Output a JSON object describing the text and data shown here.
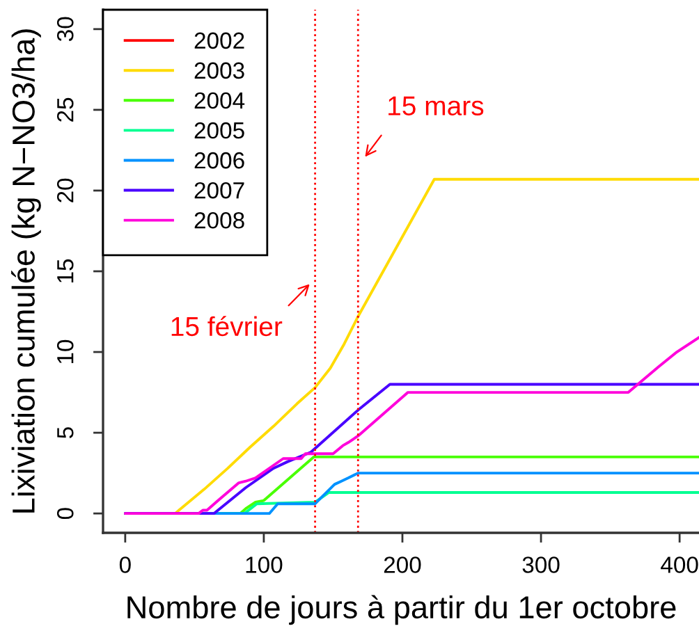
{
  "chart_data": {
    "type": "line",
    "xlabel": "Nombre de jours à partir du 1er octobre",
    "ylabel": "Lixiviation cumulée (kg N−NO3/ha)",
    "xlim": [
      -16,
      414
    ],
    "ylim": [
      -1.2,
      31.2
    ],
    "xticks": [
      0,
      100,
      200,
      300,
      400
    ],
    "yticks": [
      0,
      5,
      10,
      15,
      20,
      25,
      30
    ],
    "legend": "top left",
    "line_style": "solid",
    "marker": "none",
    "series": [
      {
        "name": "2002",
        "color": "#ff0000"
      },
      {
        "name": "2003",
        "color": "#ffdb00",
        "x": [
          0,
          36,
          57,
          74,
          90,
          107,
          124,
          137,
          148,
          158,
          168,
          223,
          414
        ],
        "values": [
          0,
          0,
          1.5,
          2.8,
          4.1,
          5.4,
          6.8,
          7.8,
          9.0,
          10.5,
          12.2,
          20.7,
          20.7
        ]
      },
      {
        "name": "2004",
        "color": "#49ff00",
        "x": [
          0,
          83,
          87,
          94,
          100,
          136,
          414
        ],
        "values": [
          0,
          0,
          0.3,
          0.7,
          0.8,
          3.5,
          3.5
        ]
      },
      {
        "name": "2005",
        "color": "#00ff92",
        "x": [
          0,
          86,
          95,
          137,
          147,
          414
        ],
        "values": [
          0,
          0,
          0.6,
          0.7,
          1.3,
          1.3
        ]
      },
      {
        "name": "2006",
        "color": "#0092ff",
        "x": [
          0,
          104,
          110,
          137,
          151,
          156,
          161,
          168,
          414
        ],
        "values": [
          0,
          0,
          0.6,
          0.6,
          1.8,
          2.0,
          2.2,
          2.5,
          2.5
        ]
      },
      {
        "name": "2007",
        "color": "#4900ff",
        "x": [
          0,
          64,
          87,
          107,
          117,
          134,
          168,
          191,
          414
        ],
        "values": [
          0,
          0,
          1.6,
          2.8,
          3.2,
          3.8,
          6.4,
          8.0,
          8.0
        ]
      },
      {
        "name": "2008",
        "color": "#ff00db",
        "x": [
          0,
          53,
          56,
          59,
          67,
          82,
          87,
          94,
          114,
          127,
          130,
          150,
          157,
          161,
          168,
          204,
          363,
          385,
          398,
          414
        ],
        "values": [
          0,
          0,
          0.2,
          0.2,
          0.8,
          1.9,
          2.0,
          2.2,
          3.4,
          3.4,
          3.7,
          3.7,
          4.2,
          4.4,
          4.8,
          7.5,
          7.5,
          9.1,
          10.0,
          10.9
        ]
      }
    ],
    "ref_lines": [
      {
        "axis": "x",
        "value": 137,
        "label": "15 février",
        "color": "#ff0000",
        "line_style": "dotted"
      },
      {
        "axis": "x",
        "value": 168,
        "label": "15 mars",
        "color": "#ff0000",
        "line_style": "dotted"
      }
    ]
  }
}
